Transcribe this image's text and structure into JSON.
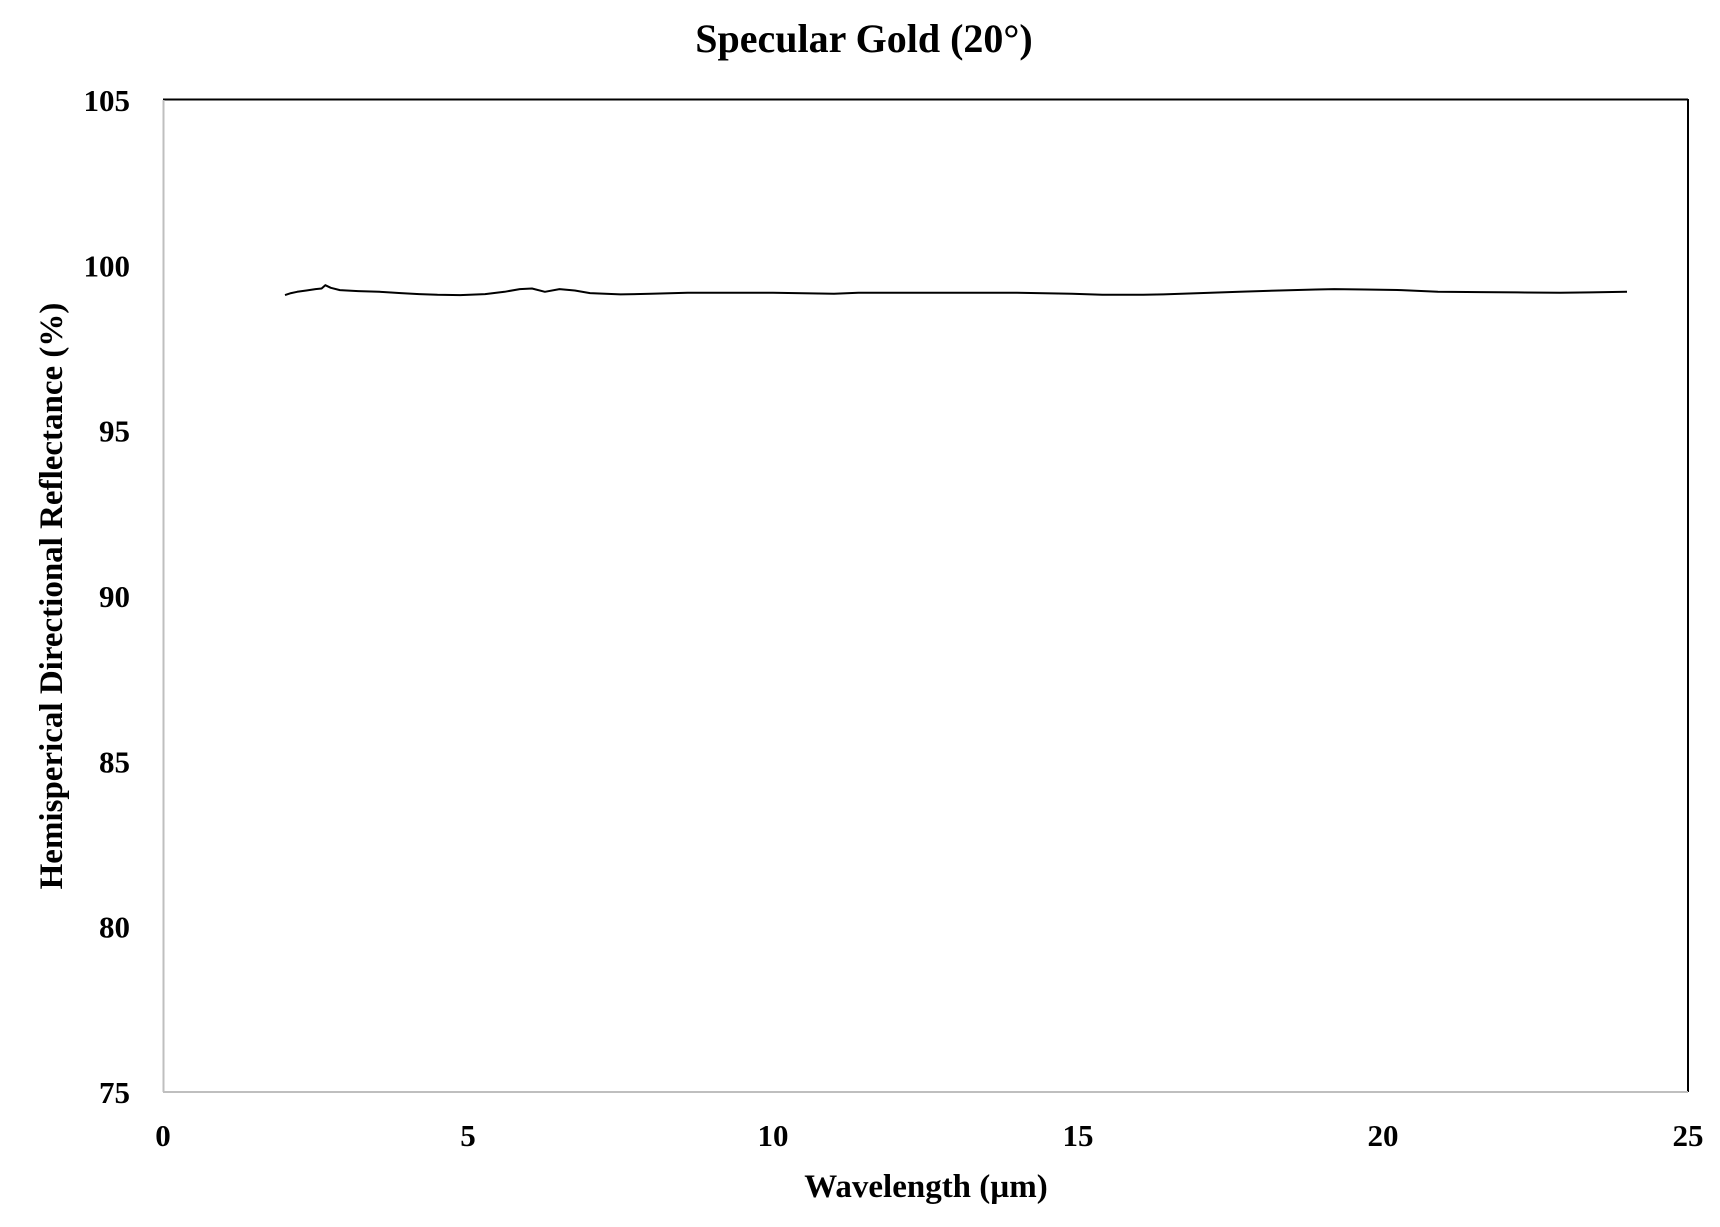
{
  "chart_data": {
    "type": "line",
    "title": "Specular Gold (20°)",
    "xlabel": "Wavelength (µm)",
    "ylabel": "Hemisperical Directional Reflectance (%)",
    "xlim": [
      0,
      25
    ],
    "ylim": [
      75,
      105
    ],
    "x_ticks": [
      0,
      5,
      10,
      15,
      20,
      25
    ],
    "y_ticks": [
      75,
      80,
      85,
      90,
      95,
      100,
      105
    ],
    "grid": false,
    "legend": null,
    "series": [
      {
        "name": "Specular Gold (20°)",
        "color": "#000000",
        "x": [
          2.0,
          2.1,
          2.2,
          2.35,
          2.5,
          2.6,
          2.66,
          2.75,
          2.9,
          3.2,
          3.55,
          3.9,
          4.2,
          4.5,
          4.87,
          5.28,
          5.6,
          5.85,
          6.05,
          6.26,
          6.5,
          6.75,
          7.0,
          7.5,
          8.0,
          8.6,
          9.5,
          10.0,
          11.0,
          11.4,
          12.0,
          13.0,
          14.0,
          14.9,
          15.4,
          16.0,
          16.4,
          17.0,
          17.65,
          18.3,
          18.9,
          19.2,
          19.7,
          20.3,
          20.9,
          21.6,
          22.2,
          22.9,
          23.4,
          24.0
        ],
        "values": [
          99.1,
          99.16,
          99.2,
          99.24,
          99.28,
          99.3,
          99.4,
          99.32,
          99.25,
          99.22,
          99.2,
          99.16,
          99.13,
          99.11,
          99.1,
          99.13,
          99.2,
          99.28,
          99.3,
          99.2,
          99.28,
          99.24,
          99.16,
          99.12,
          99.14,
          99.17,
          99.17,
          99.17,
          99.14,
          99.17,
          99.17,
          99.17,
          99.17,
          99.14,
          99.11,
          99.11,
          99.12,
          99.16,
          99.2,
          99.24,
          99.27,
          99.28,
          99.27,
          99.25,
          99.2,
          99.19,
          99.18,
          99.17,
          99.18,
          99.2
        ]
      }
    ]
  },
  "labels": {
    "title": "Specular Gold (20°)",
    "xlabel": "Wavelength (µm)",
    "ylabel": "Hemisperical Directional Reflectance (%)"
  },
  "colors": {
    "line": "#000000",
    "frame_top_right": "#000000",
    "frame_bottom_left": "#bfbfbf",
    "background": "#ffffff"
  }
}
